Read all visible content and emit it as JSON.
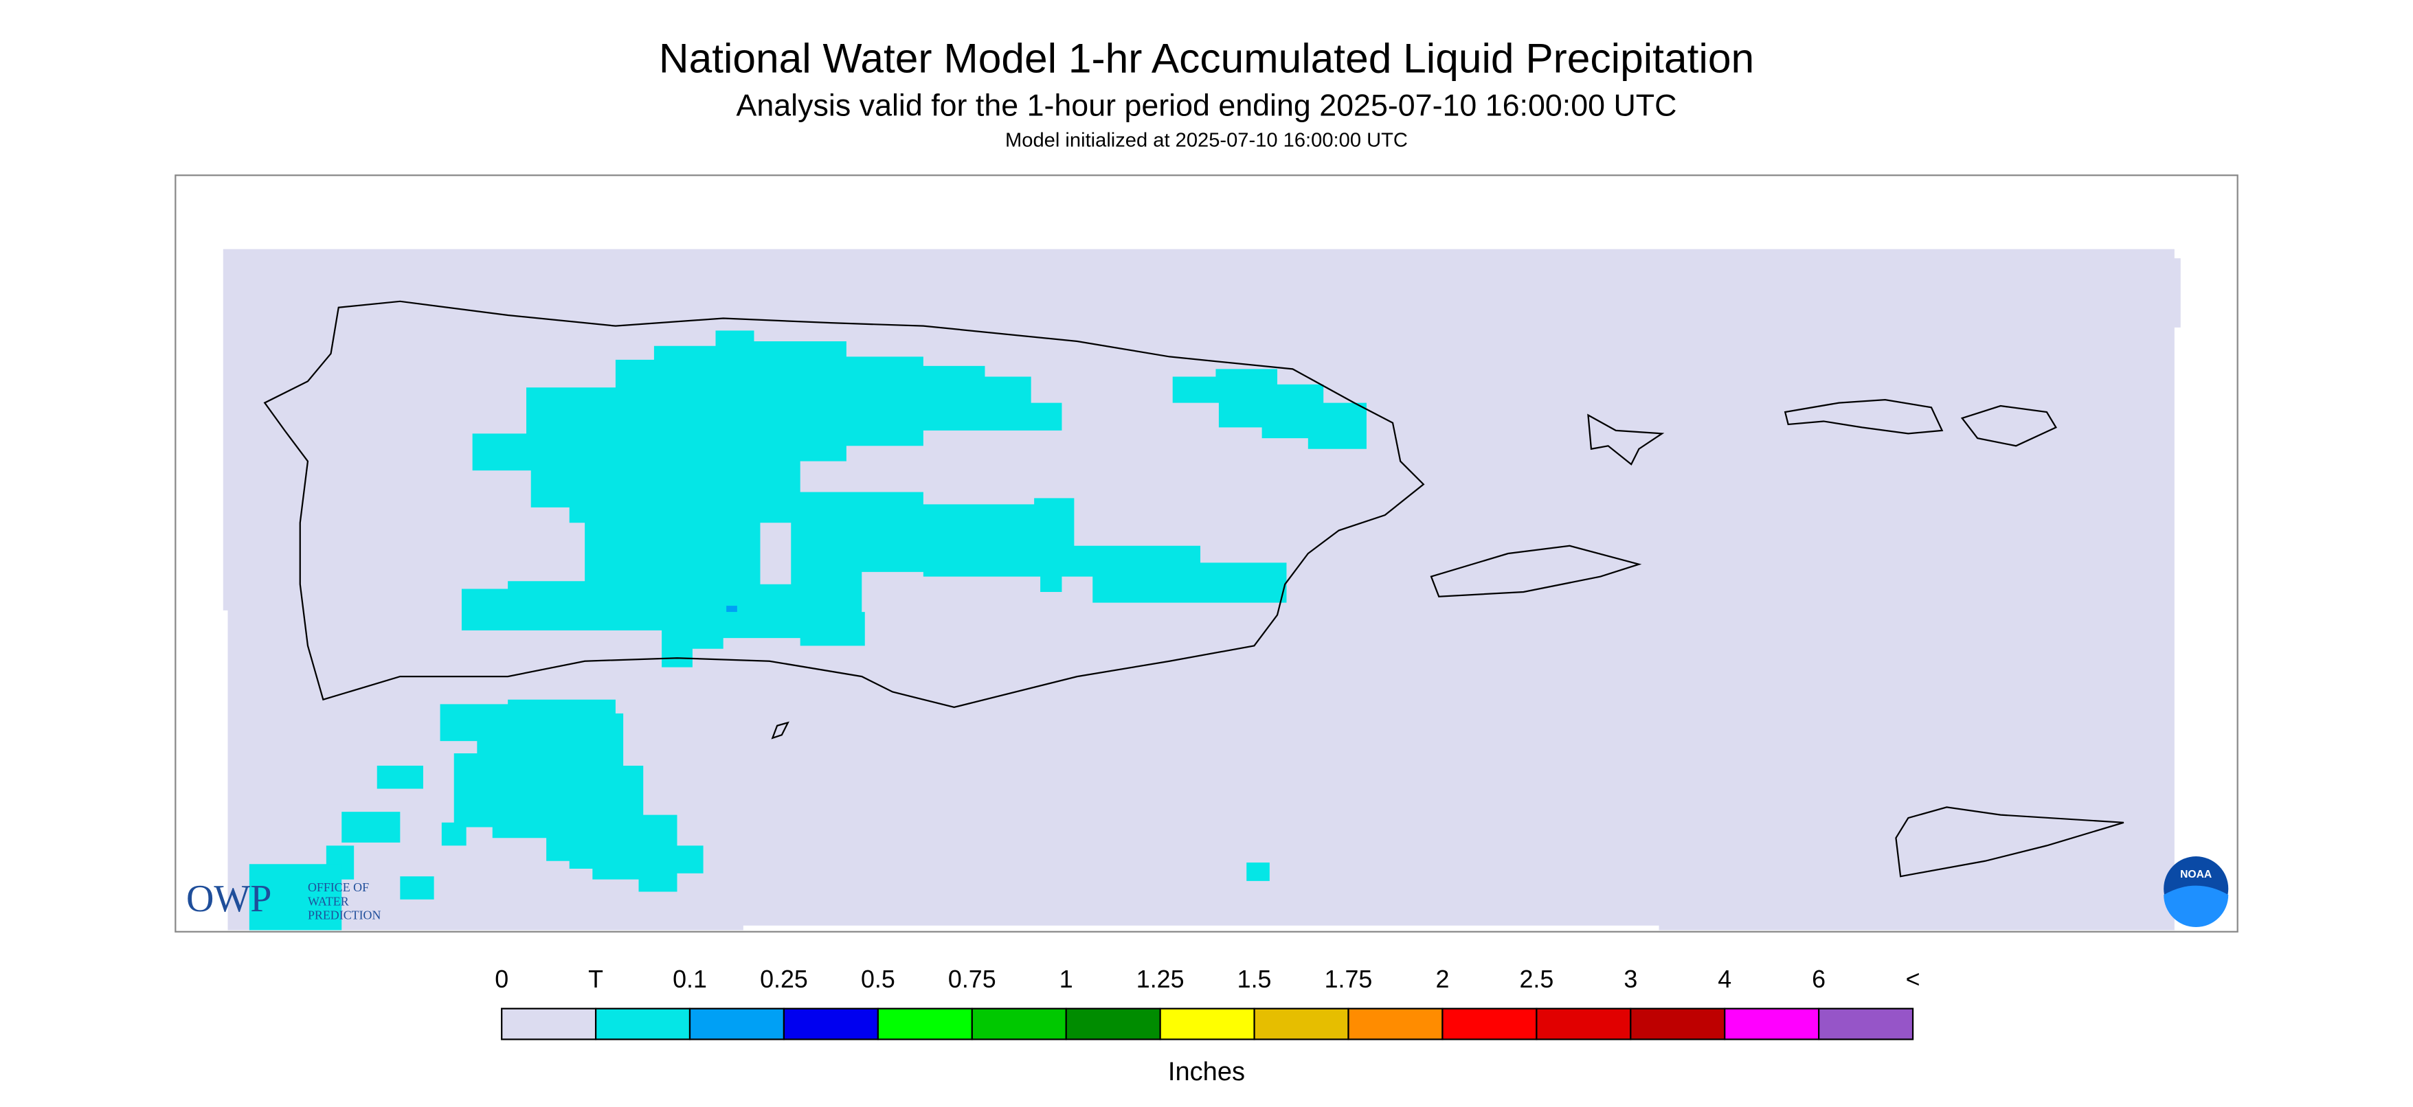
{
  "header": {
    "title": "National Water Model 1-hr Accumulated Liquid Precipitation",
    "subtitle": "Analysis valid for the 1-hour period ending 2025-07-10 16:00:00 UTC",
    "note": "Model initialized at 2025-07-10 16:00:00 UTC"
  },
  "legend": {
    "labels": [
      "0",
      "T",
      "0.1",
      "0.25",
      "0.5",
      "0.75",
      "1",
      "1.25",
      "1.5",
      "1.75",
      "2",
      "2.5",
      "3",
      "4",
      "6",
      "<"
    ],
    "colors": [
      "#dcdcf0",
      "#05e6e6",
      "#00a0f5",
      "#0000f0",
      "#00ff00",
      "#00c800",
      "#008c00",
      "#ffff00",
      "#e6be00",
      "#ff8c00",
      "#ff0000",
      "#e10000",
      "#be0000",
      "#ff00ff",
      "#9655c8"
    ],
    "unit": "Inches"
  },
  "logos": {
    "owp": "OWP",
    "owp_text": [
      "OFFICE OF",
      "WATER",
      "PREDICTION"
    ],
    "noaa": "NOAA"
  }
}
